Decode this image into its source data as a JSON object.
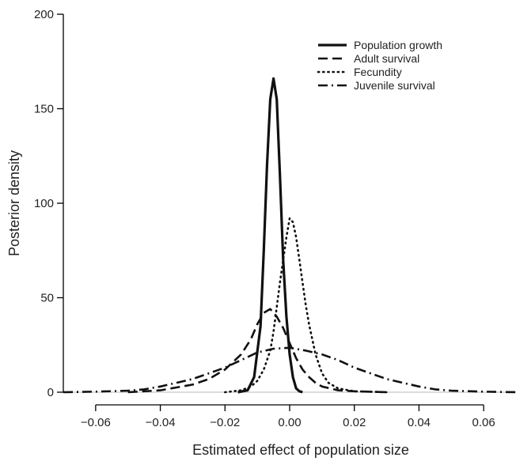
{
  "chart_data": {
    "type": "line",
    "title": "",
    "xlabel": "Estimated effect of population size",
    "ylabel": "Posterior density",
    "xlim": [
      -0.07,
      0.07
    ],
    "ylim": [
      0,
      200
    ],
    "xticks": [
      -0.06,
      -0.04,
      -0.02,
      0.0,
      0.02,
      0.04,
      0.06
    ],
    "xtick_labels": [
      "−0.06",
      "−0.04",
      "−0.02",
      "0.00",
      "0.02",
      "0.04",
      "0.06"
    ],
    "yticks": [
      0,
      50,
      100,
      150,
      200
    ],
    "ytick_labels": [
      "0",
      "50",
      "100",
      "150",
      "200"
    ],
    "grid": false,
    "legend_position": "top-right",
    "series": [
      {
        "name": "Population growth",
        "style": "solid",
        "x": [
          -0.016,
          -0.013,
          -0.011,
          -0.009,
          -0.008,
          -0.007,
          -0.006,
          -0.005,
          -0.004,
          -0.003,
          -0.002,
          -0.001,
          0.0,
          0.001,
          0.002,
          0.003,
          0.004
        ],
        "y": [
          0,
          1,
          8,
          35,
          75,
          120,
          155,
          166,
          155,
          115,
          70,
          40,
          20,
          8,
          2,
          0.5,
          0
        ]
      },
      {
        "name": "Adult survival",
        "style": "dashed",
        "x": [
          -0.05,
          -0.04,
          -0.03,
          -0.025,
          -0.02,
          -0.015,
          -0.012,
          -0.01,
          -0.008,
          -0.006,
          -0.004,
          -0.002,
          0.0,
          0.002,
          0.004,
          0.006,
          0.008,
          0.01,
          0.015,
          0.02,
          0.03
        ],
        "y": [
          0,
          1,
          4,
          7,
          12,
          20,
          28,
          36,
          42,
          44,
          40,
          34,
          26,
          18,
          12,
          8,
          5,
          3,
          1,
          0.5,
          0
        ]
      },
      {
        "name": "Fecundity",
        "style": "dotted",
        "x": [
          -0.02,
          -0.015,
          -0.012,
          -0.01,
          -0.008,
          -0.006,
          -0.005,
          -0.004,
          -0.003,
          -0.002,
          -0.001,
          0.0,
          0.001,
          0.002,
          0.003,
          0.004,
          0.005,
          0.006,
          0.008,
          0.01,
          0.012,
          0.015,
          0.02,
          0.03
        ],
        "y": [
          0,
          1,
          3,
          6,
          12,
          22,
          32,
          45,
          58,
          70,
          82,
          92,
          90,
          82,
          70,
          58,
          46,
          36,
          20,
          10,
          5,
          2,
          0.5,
          0
        ]
      },
      {
        "name": "Juvenile survival",
        "style": "dashdot",
        "x": [
          -0.07,
          -0.06,
          -0.05,
          -0.045,
          -0.04,
          -0.035,
          -0.03,
          -0.025,
          -0.02,
          -0.015,
          -0.01,
          -0.005,
          0.0,
          0.005,
          0.01,
          0.015,
          0.02,
          0.025,
          0.03,
          0.035,
          0.04,
          0.045,
          0.05,
          0.06,
          0.07
        ],
        "y": [
          0,
          0.3,
          0.8,
          1.5,
          3,
          5,
          7,
          10,
          13,
          17,
          21,
          23,
          23.5,
          22,
          20,
          17,
          13,
          10,
          7,
          5,
          3,
          1.5,
          0.8,
          0.3,
          0
        ]
      }
    ]
  }
}
